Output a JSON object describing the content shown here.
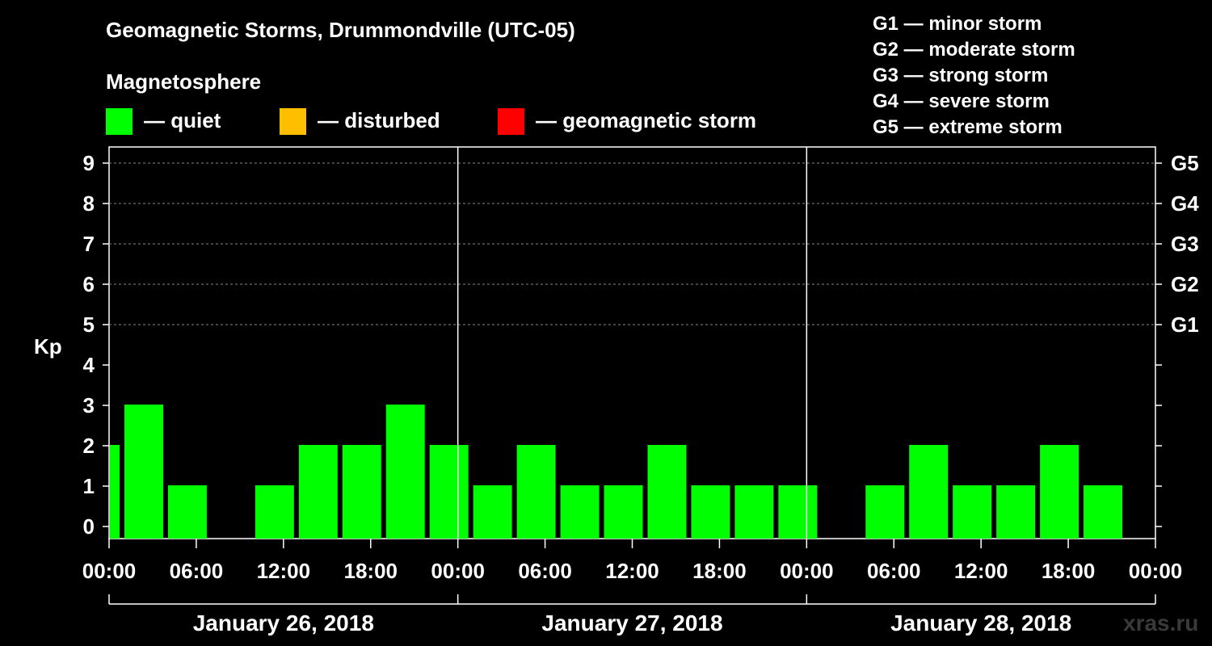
{
  "title": "Geomagnetic Storms, Drummondville (UTC-05)",
  "legend": {
    "heading": "Magnetosphere",
    "items": [
      {
        "label": "— quiet",
        "color": "#00ff00"
      },
      {
        "label": "— disturbed",
        "color": "#ffbf00"
      },
      {
        "label": "— geomagnetic storm",
        "color": "#ff0000"
      }
    ]
  },
  "g_scale": [
    "G1 — minor storm",
    "G2 — moderate storm",
    "G3 — strong storm",
    "G4 — severe storm",
    "G5 — extreme storm"
  ],
  "watermark": "xras.ru",
  "chart_data": {
    "type": "bar",
    "ylabel": "Kp",
    "ylim": [
      0,
      9
    ],
    "y_ticks": [
      0,
      1,
      2,
      3,
      4,
      5,
      6,
      7,
      8,
      9
    ],
    "right_axis_labels": [
      {
        "kp": 5,
        "label": "G1"
      },
      {
        "kp": 6,
        "label": "G2"
      },
      {
        "kp": 7,
        "label": "G3"
      },
      {
        "kp": 8,
        "label": "G4"
      },
      {
        "kp": 9,
        "label": "G5"
      }
    ],
    "grid": "dashed horizontal at Kp 5-9",
    "x_hours_range": [
      0,
      72
    ],
    "x_tick_labels": [
      "00:00",
      "06:00",
      "12:00",
      "18:00",
      "00:00",
      "06:00",
      "12:00",
      "18:00",
      "00:00",
      "06:00",
      "12:00",
      "18:00",
      "00:00"
    ],
    "days": [
      "January 26, 2018",
      "January 27, 2018",
      "January 28, 2018"
    ],
    "bar_color": "#00ff00",
    "bars": [
      {
        "start_hour": 0,
        "end_hour": 1,
        "kp": 2
      },
      {
        "start_hour": 1,
        "end_hour": 4,
        "kp": 3
      },
      {
        "start_hour": 4,
        "end_hour": 7,
        "kp": 1
      },
      {
        "start_hour": 10,
        "end_hour": 13,
        "kp": 1
      },
      {
        "start_hour": 13,
        "end_hour": 16,
        "kp": 2
      },
      {
        "start_hour": 16,
        "end_hour": 19,
        "kp": 2
      },
      {
        "start_hour": 19,
        "end_hour": 22,
        "kp": 3
      },
      {
        "start_hour": 22,
        "end_hour": 25,
        "kp": 2
      },
      {
        "start_hour": 25,
        "end_hour": 28,
        "kp": 1
      },
      {
        "start_hour": 28,
        "end_hour": 31,
        "kp": 2
      },
      {
        "start_hour": 31,
        "end_hour": 34,
        "kp": 1
      },
      {
        "start_hour": 34,
        "end_hour": 37,
        "kp": 1
      },
      {
        "start_hour": 37,
        "end_hour": 40,
        "kp": 2
      },
      {
        "start_hour": 40,
        "end_hour": 43,
        "kp": 1
      },
      {
        "start_hour": 43,
        "end_hour": 46,
        "kp": 1
      },
      {
        "start_hour": 46,
        "end_hour": 49,
        "kp": 1
      },
      {
        "start_hour": 52,
        "end_hour": 55,
        "kp": 1
      },
      {
        "start_hour": 55,
        "end_hour": 58,
        "kp": 2
      },
      {
        "start_hour": 58,
        "end_hour": 61,
        "kp": 1
      },
      {
        "start_hour": 61,
        "end_hour": 64,
        "kp": 1
      },
      {
        "start_hour": 64,
        "end_hour": 67,
        "kp": 2
      },
      {
        "start_hour": 67,
        "end_hour": 70,
        "kp": 1
      }
    ]
  }
}
